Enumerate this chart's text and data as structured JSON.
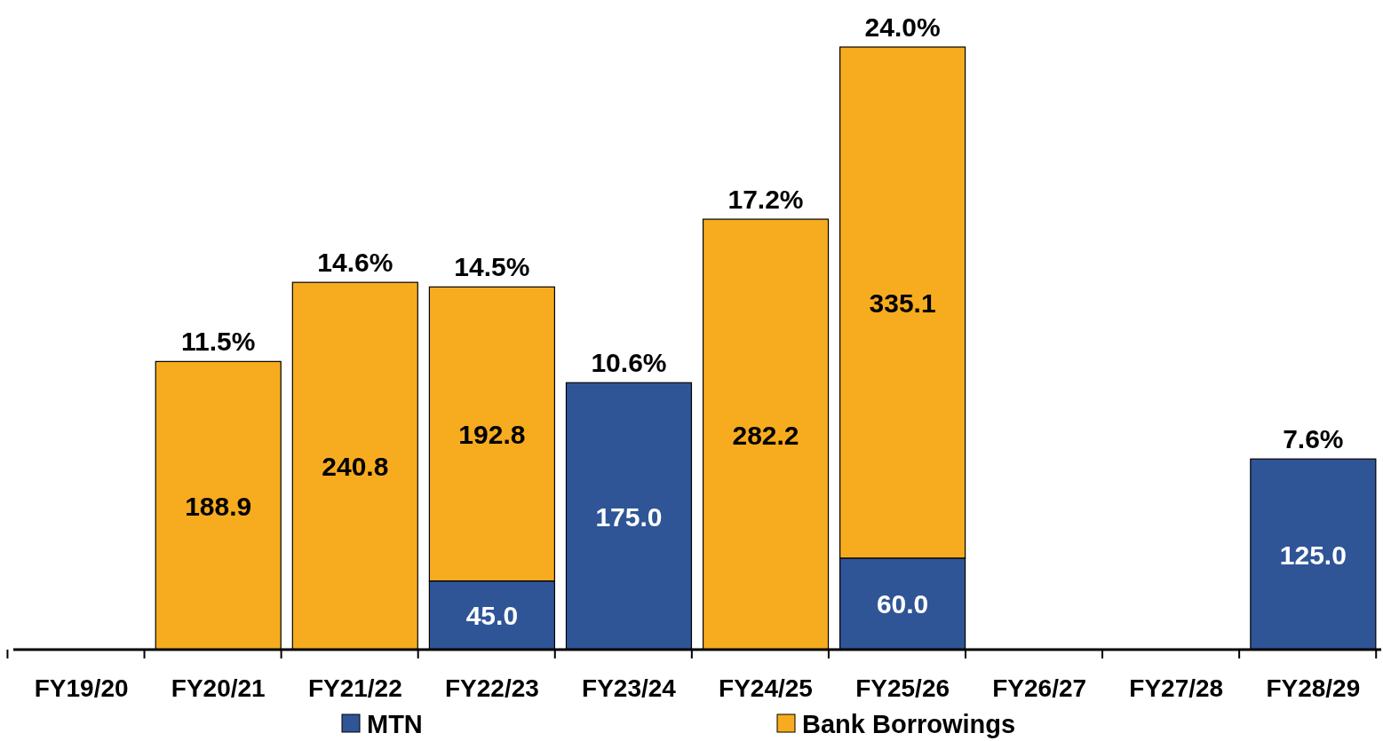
{
  "chart_data": {
    "type": "bar",
    "stacked": true,
    "legend": "bottom",
    "categories": [
      "FY19/20",
      "FY20/21",
      "FY21/22",
      "FY22/23",
      "FY23/24",
      "FY24/25",
      "FY25/26",
      "FY26/27",
      "FY27/28",
      "FY28/29"
    ],
    "series": [
      {
        "name": "MTN",
        "color": "#2f5597",
        "values": [
          null,
          null,
          null,
          45.0,
          175.0,
          null,
          60.0,
          null,
          null,
          125.0
        ],
        "value_labels": [
          null,
          null,
          null,
          "45.0",
          "175.0",
          null,
          "60.0",
          null,
          null,
          "125.0"
        ]
      },
      {
        "name": "Bank Borrowings",
        "color": "#f7ac1f",
        "values": [
          null,
          188.9,
          240.8,
          192.8,
          null,
          282.2,
          335.1,
          null,
          null,
          null
        ],
        "value_labels": [
          null,
          "188.9",
          "240.8",
          "192.8",
          null,
          "282.2",
          "335.1",
          null,
          null,
          null
        ]
      }
    ],
    "annotations": [
      {
        "text": "11.5%",
        "x": "FY20/21",
        "y": 188.9
      },
      {
        "text": "14.6%",
        "x": "FY21/22",
        "y": 240.8
      },
      {
        "text": "14.5%",
        "x": "FY22/23",
        "y": 237.8
      },
      {
        "text": "10.6%",
        "x": "FY23/24",
        "y": 175.0
      },
      {
        "text": "17.2%",
        "x": "FY24/25",
        "y": 282.2
      },
      {
        "text": "24.0%",
        "x": "FY25/26",
        "y": 395.1
      },
      {
        "text": "7.6%",
        "x": "FY28/29",
        "y": 125.0
      }
    ]
  }
}
